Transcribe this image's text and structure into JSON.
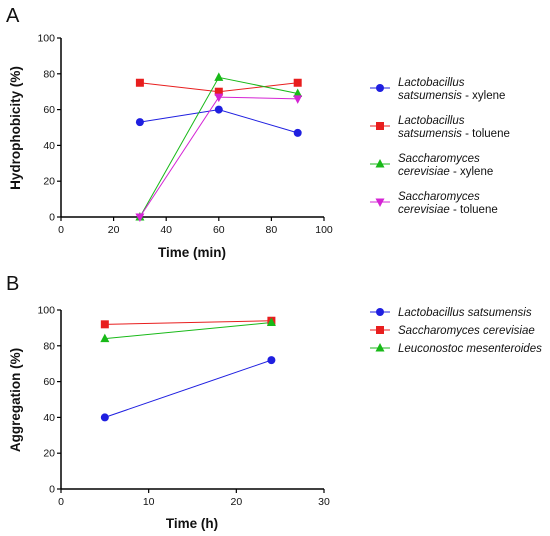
{
  "colors": {
    "blue": "#1f1fe0",
    "red": "#e81e1e",
    "green": "#18b918",
    "magenta": "#d424d4"
  },
  "chart_data": [
    {
      "panel_label": "A",
      "type": "line",
      "xlabel": "Time (min)",
      "ylabel": "Hydrophobicity (%)",
      "xlim": [
        0,
        100
      ],
      "ylim": [
        0,
        100
      ],
      "xticks": [
        "0",
        "20",
        "40",
        "60",
        "80",
        "100"
      ],
      "yticks": [
        "0",
        "20",
        "40",
        "60",
        "80",
        "100"
      ],
      "grid": false,
      "legend_position": "right",
      "series": [
        {
          "name_italic": "Lactobacillus satsumensis",
          "name_suffix": " - xylene",
          "legend_lines": [
            [
              "Lactobacillus",
              ""
            ],
            [
              "satsumensis",
              " - xylene"
            ]
          ],
          "color": "blue",
          "marker": "circle",
          "x": [
            30,
            60,
            90
          ],
          "y": [
            53,
            60,
            47
          ]
        },
        {
          "name_italic": "Lactobacillus satsumensis",
          "name_suffix": " - toluene",
          "legend_lines": [
            [
              "Lactobacillus",
              ""
            ],
            [
              "satsumensis",
              " - toluene"
            ]
          ],
          "color": "red",
          "marker": "square",
          "x": [
            30,
            60,
            90
          ],
          "y": [
            75,
            70,
            75
          ]
        },
        {
          "name_italic": "Saccharomyces cerevisiae",
          "name_suffix": " - xylene",
          "legend_lines": [
            [
              "Saccharomyces",
              ""
            ],
            [
              "cerevisiae",
              " - xylene"
            ]
          ],
          "color": "green",
          "marker": "triangle-up",
          "x": [
            30,
            60,
            90
          ],
          "y": [
            0,
            78,
            69
          ]
        },
        {
          "name_italic": "Saccharomyces cerevisiae",
          "name_suffix": " - toluene",
          "legend_lines": [
            [
              "Saccharomyces",
              ""
            ],
            [
              "cerevisiae",
              " - toluene"
            ]
          ],
          "color": "magenta",
          "marker": "triangle-down",
          "x": [
            30,
            60,
            90
          ],
          "y": [
            0,
            67,
            66
          ]
        }
      ]
    },
    {
      "panel_label": "B",
      "type": "line",
      "xlabel": "Time (h)",
      "ylabel": "Aggregation (%)",
      "xlim": [
        0,
        30
      ],
      "ylim": [
        0,
        100
      ],
      "xticks": [
        "0",
        "10",
        "20",
        "30"
      ],
      "yticks": [
        "0",
        "20",
        "40",
        "60",
        "80",
        "100"
      ],
      "grid": false,
      "legend_position": "right",
      "series": [
        {
          "name_italic": "Lactobacillus satsumensis",
          "name_suffix": "",
          "legend_lines": [
            [
              "Lactobacillus satsumensis",
              ""
            ]
          ],
          "color": "blue",
          "marker": "circle",
          "x": [
            5,
            24
          ],
          "y": [
            40,
            72
          ]
        },
        {
          "name_italic": "Saccharomyces cerevisiae",
          "name_suffix": "",
          "legend_lines": [
            [
              "Saccharomyces cerevisiae",
              ""
            ]
          ],
          "color": "red",
          "marker": "square",
          "x": [
            5,
            24
          ],
          "y": [
            92,
            94
          ]
        },
        {
          "name_italic": "Leuconostoc mesenteroides",
          "name_suffix": "",
          "legend_lines": [
            [
              "Leuconostoc mesenteroides",
              ""
            ]
          ],
          "color": "green",
          "marker": "triangle-up",
          "x": [
            5,
            24
          ],
          "y": [
            84,
            93
          ]
        }
      ]
    }
  ]
}
